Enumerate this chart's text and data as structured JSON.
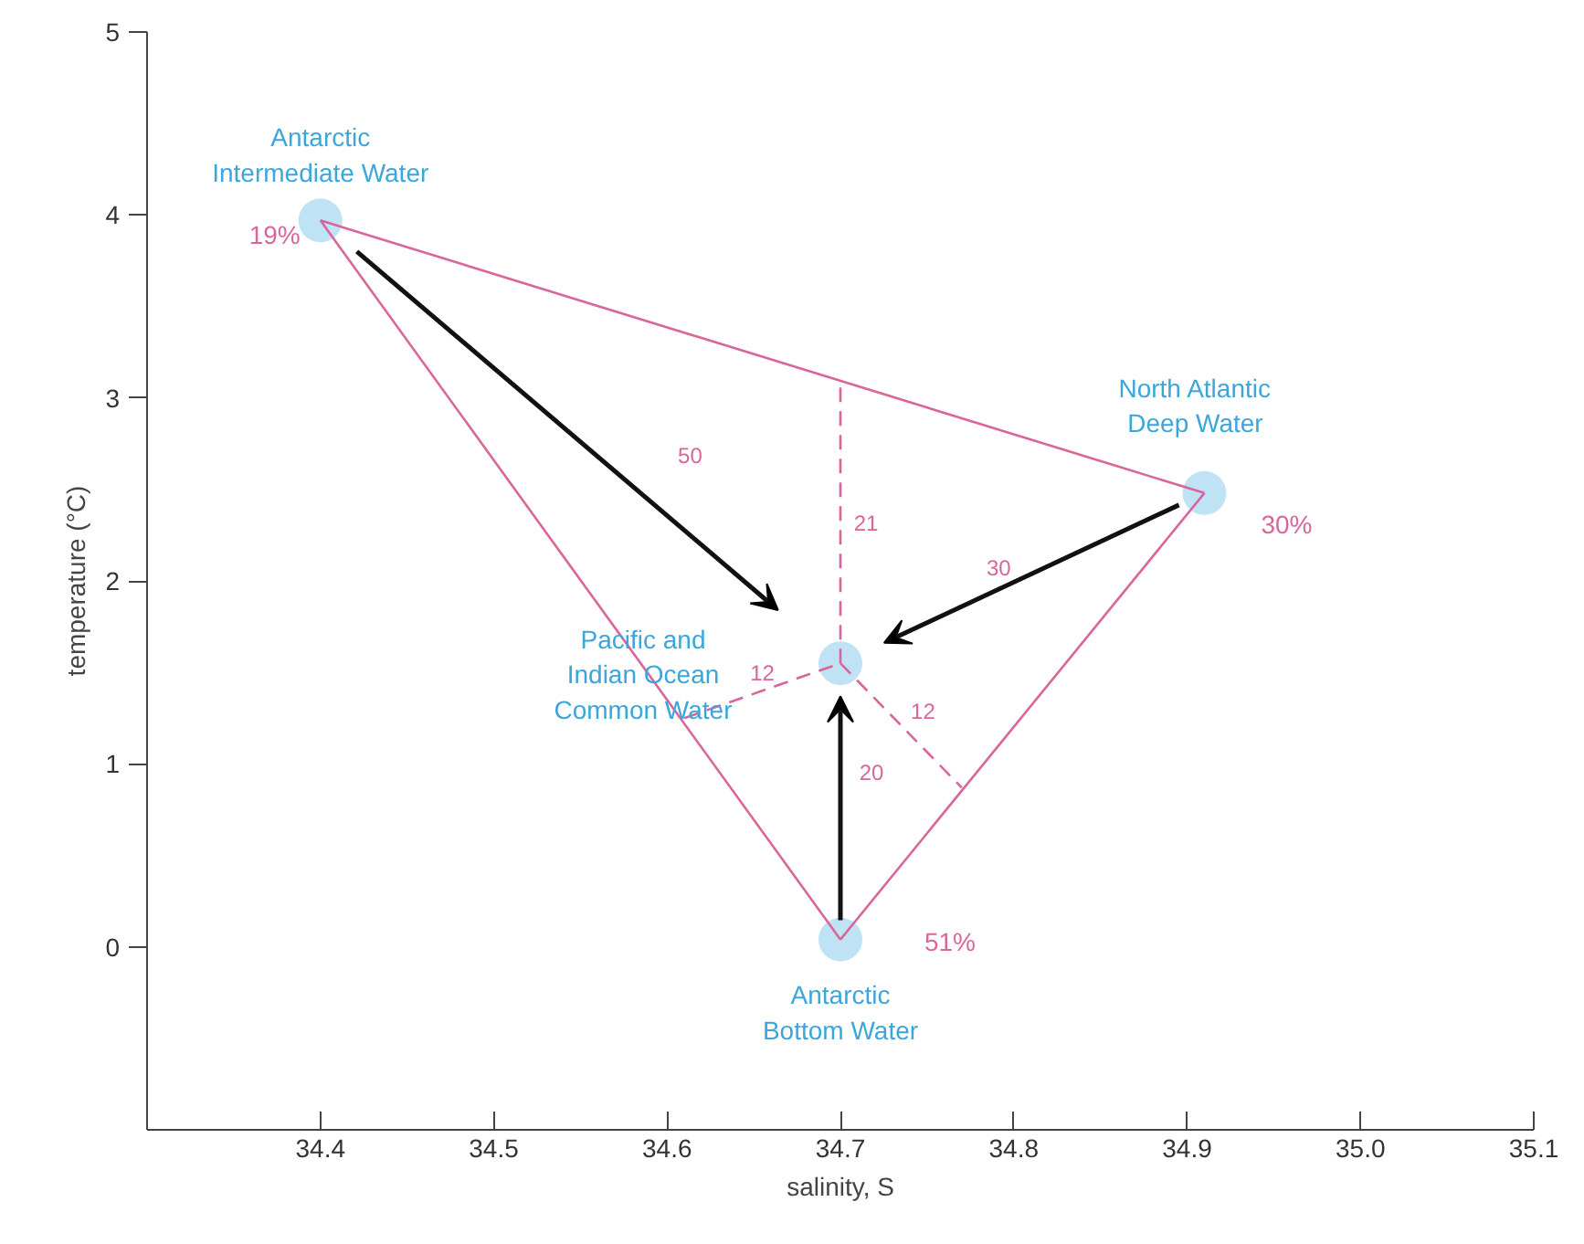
{
  "chart_data": {
    "type": "scatter",
    "xlabel": "salinity, S",
    "ylabel": "temperature (°C)",
    "xlim": [
      34.3,
      35.1
    ],
    "ylim": [
      -1,
      5
    ],
    "xticks": [
      34.4,
      34.5,
      34.6,
      34.7,
      34.8,
      34.9,
      {
        "value": 35,
        "label": "35.0"
      },
      35.1
    ],
    "yticks": [
      0,
      1,
      2,
      3,
      4,
      5
    ],
    "grid": false,
    "series": [
      {
        "color": "#bfe3f5",
        "marker": "circle",
        "x": [
          34.4,
          34.91,
          34.7,
          34.7
        ],
        "values": [
          3.97,
          2.48,
          0.04,
          1.55
        ]
      },
      {
        "type": "line",
        "color": "#d9659a",
        "line_style": "solid",
        "x": [
          34.4,
          34.91
        ],
        "values": [
          3.97,
          2.48
        ]
      },
      {
        "type": "line",
        "color": "#d9659a",
        "line_style": "solid",
        "x": [
          34.7,
          34.91
        ],
        "values": [
          0.04,
          2.48
        ]
      },
      {
        "type": "line",
        "color": "#d9659a",
        "line_style": "solid",
        "x": [
          34.4,
          34.7
        ],
        "values": [
          3.97,
          0.04
        ]
      },
      {
        "type": "line",
        "color": "#d9659a",
        "line_style": "dashed",
        "x": [
          34.7,
          34.7
        ],
        "values": [
          1.55,
          3.09
        ]
      },
      {
        "type": "line",
        "color": "#d9659a",
        "line_style": "dashed",
        "x": [
          34.7,
          34.77
        ],
        "values": [
          1.55,
          0.87
        ]
      },
      {
        "type": "line",
        "color": "#d9659a",
        "line_style": "dashed",
        "x": [
          34.61,
          34.7
        ],
        "values": [
          1.25,
          1.55
        ]
      }
    ],
    "annotations": [
      "Antarctic\nIntermediate Water",
      "North Atlantic\nDeep Water",
      "Pacific and\nIndian Ocean\nCommon Water",
      "Antarctic\nBottom Water",
      "19%",
      "30%",
      "51%",
      "21",
      "12",
      "12",
      "50",
      "30",
      "20"
    ]
  }
}
